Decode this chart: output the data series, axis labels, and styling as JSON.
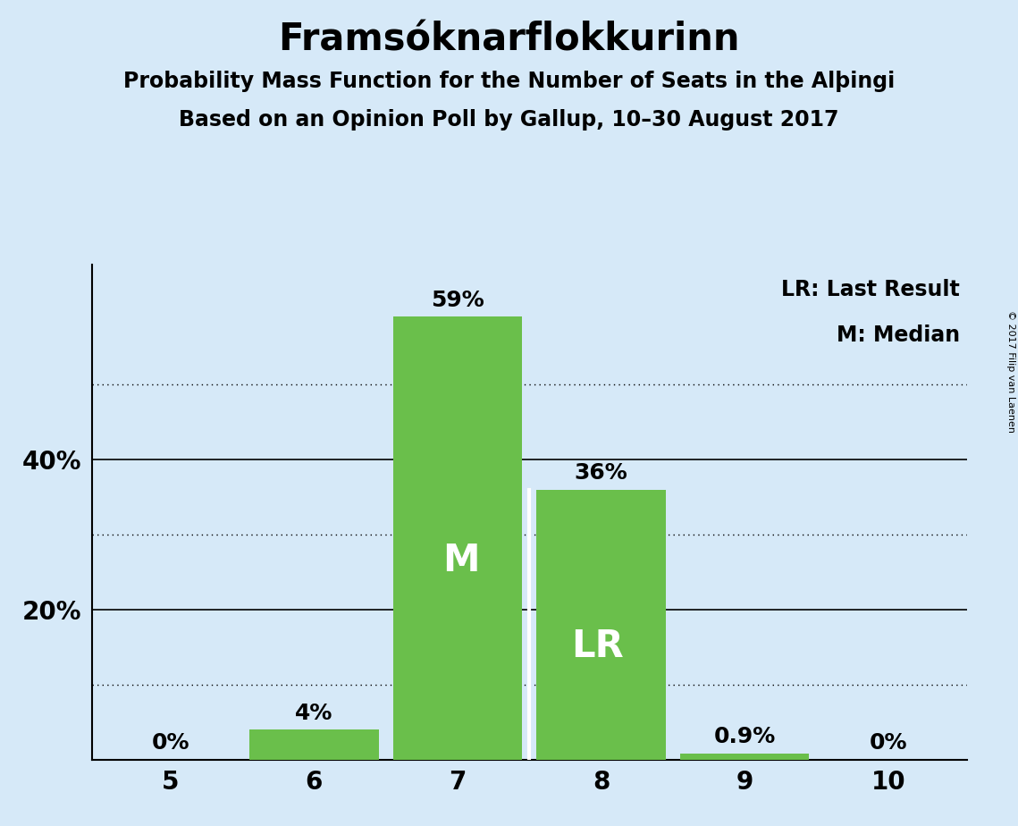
{
  "title": "Framsóknarflokkurinn",
  "subtitle1": "Probability Mass Function for the Number of Seats in the Alþingi",
  "subtitle2": "Based on an Opinion Poll by Gallup, 10–30 August 2017",
  "copyright": "© 2017 Filip van Laenen",
  "seats": [
    5,
    6,
    7,
    8,
    9,
    10
  ],
  "probabilities": [
    0.0,
    4.0,
    59.0,
    36.0,
    0.9,
    0.0
  ],
  "bar_color": "#6abf4b",
  "background_color": "#d6e9f8",
  "median_seat": 7,
  "last_result_seat": 8,
  "solid_ticks": [
    20,
    40
  ],
  "dotted_ticks": [
    10,
    30,
    50
  ],
  "legend_lr": "LR: Last Result",
  "legend_m": "M: Median",
  "bar_labels": [
    "0%",
    "4%",
    "59%",
    "36%",
    "0.9%",
    "0%"
  ],
  "figsize": [
    11.39,
    9.24
  ],
  "dpi": 100
}
